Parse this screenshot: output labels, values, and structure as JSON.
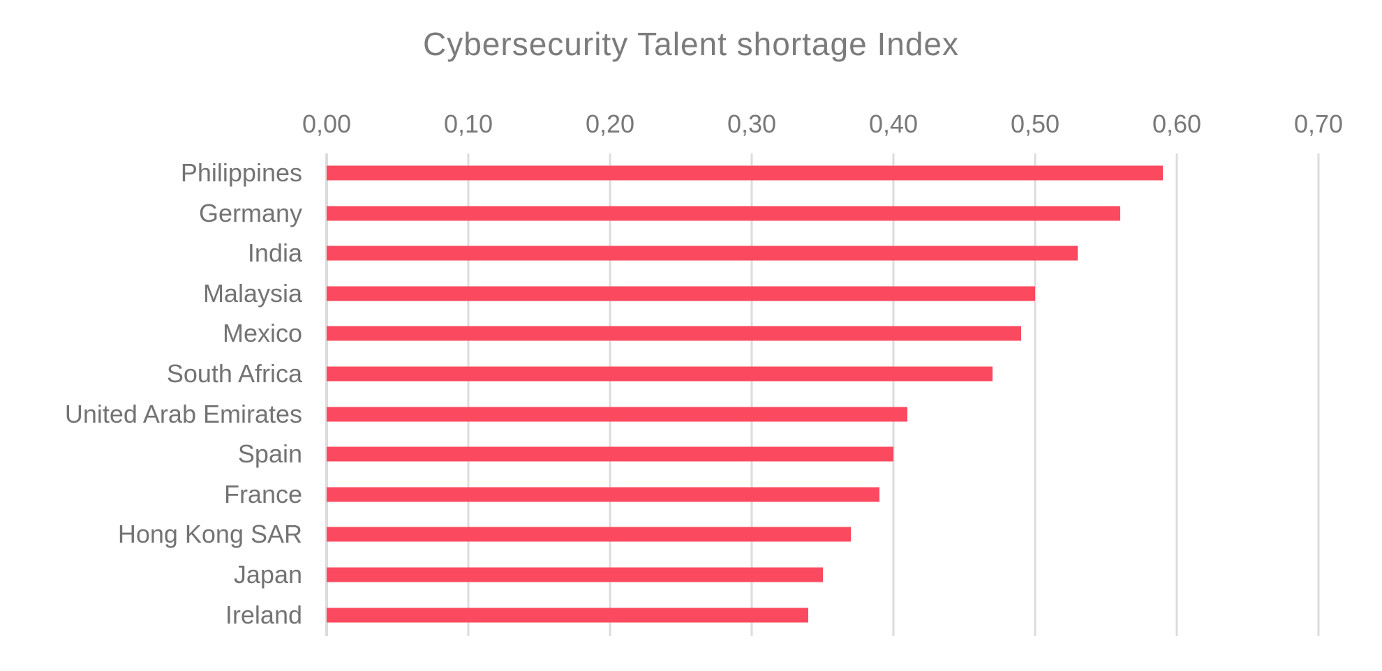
{
  "chart_data": {
    "type": "bar",
    "orientation": "horizontal",
    "title": "Cybersecurity Talent shortage Index",
    "xlabel": "",
    "ylabel": "",
    "xlim": [
      0,
      0.7
    ],
    "x_axis_position": "top",
    "grid": "vertical",
    "decimal_separator": ",",
    "x_ticks": [
      {
        "value": 0.0,
        "label": "0,00"
      },
      {
        "value": 0.1,
        "label": "0,10"
      },
      {
        "value": 0.2,
        "label": "0,20"
      },
      {
        "value": 0.3,
        "label": "0,30"
      },
      {
        "value": 0.4,
        "label": "0,40"
      },
      {
        "value": 0.5,
        "label": "0,50"
      },
      {
        "value": 0.6,
        "label": "0,60"
      },
      {
        "value": 0.7,
        "label": "0,70"
      }
    ],
    "categories": [
      "Philippines",
      "Germany",
      "India",
      "Malaysia",
      "Mexico",
      "South Africa",
      "United Arab Emirates",
      "Spain",
      "France",
      "Hong Kong SAR",
      "Japan",
      "Ireland"
    ],
    "values": [
      0.59,
      0.56,
      0.53,
      0.5,
      0.49,
      0.47,
      0.41,
      0.4,
      0.39,
      0.37,
      0.35,
      0.34
    ],
    "legend": null
  },
  "colors": {
    "bar": "#fb4a5f",
    "title_text": "#7b7b7b",
    "tick_text": "#787878",
    "category_text": "#737373",
    "gridline": "#dcdcdc",
    "background": "#ffffff"
  }
}
